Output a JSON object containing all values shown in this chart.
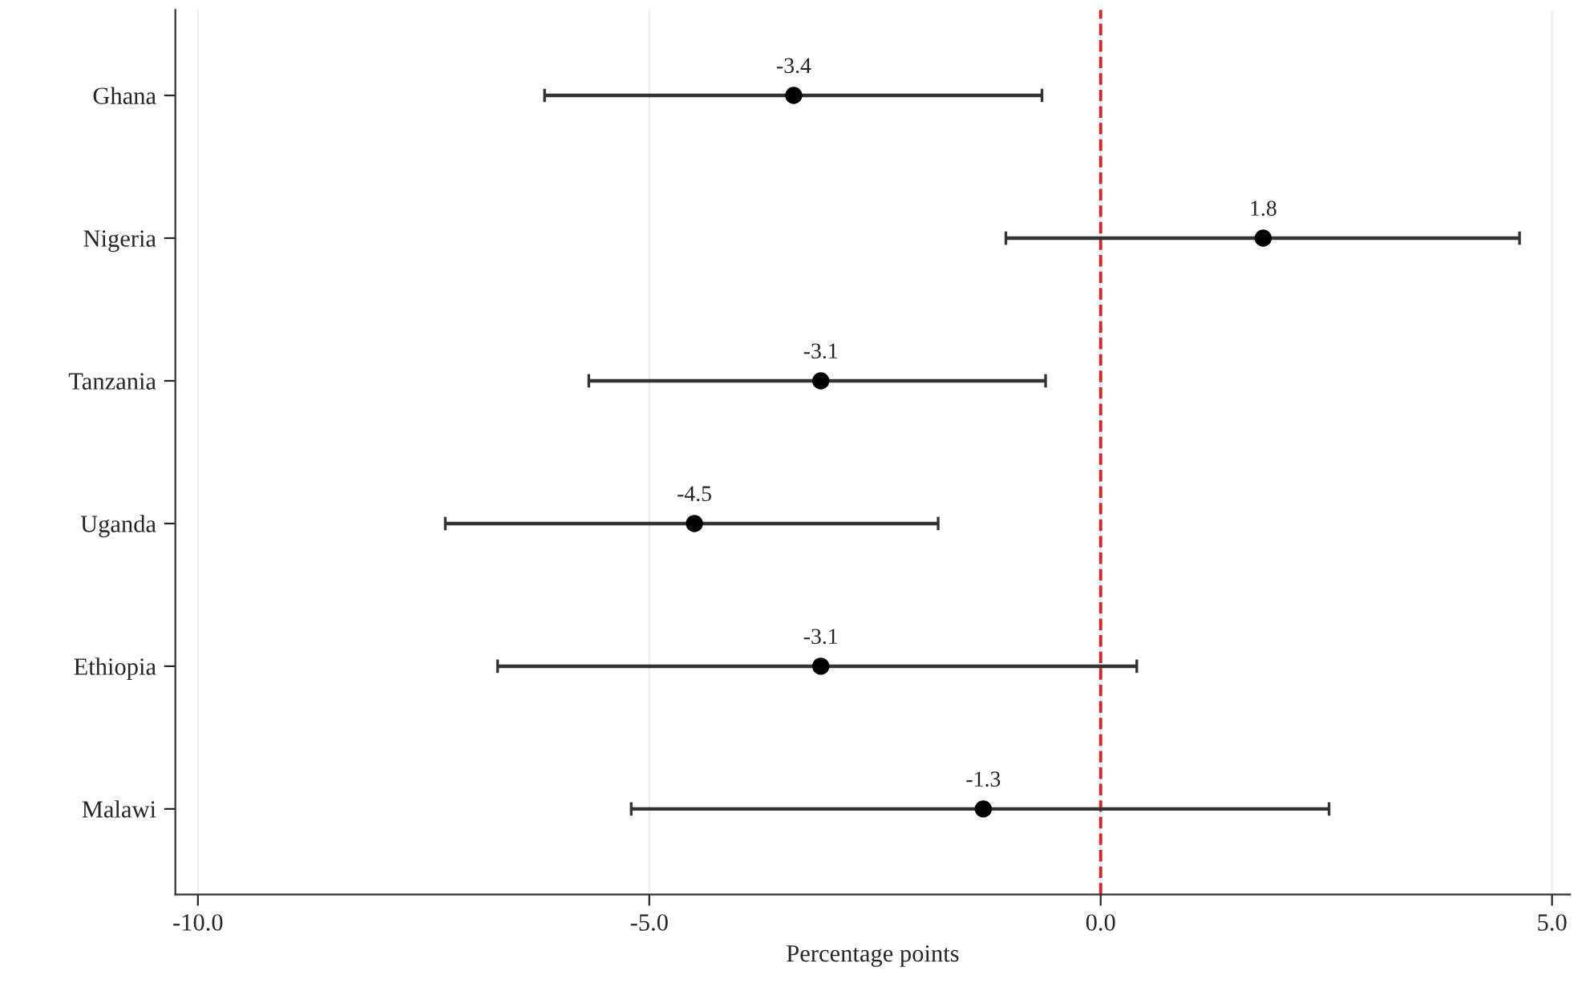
{
  "chart_data": {
    "type": "scatter",
    "orientation": "horizontal",
    "xlabel": "Percentage points",
    "categories": [
      "Ghana",
      "Nigeria",
      "Tanzania",
      "Uganda",
      "Ethiopia",
      "Malawi"
    ],
    "values": [
      -3.4,
      1.8,
      -3.1,
      -4.5,
      -3.1,
      -1.3
    ],
    "errors": [
      [
        -6.16,
        -0.65
      ],
      [
        -1.05,
        4.64
      ],
      [
        -5.67,
        -0.61
      ],
      [
        -7.26,
        -1.8
      ],
      [
        -6.68,
        0.4
      ],
      [
        -5.2,
        2.53
      ]
    ],
    "color": "#000000",
    "marker": "circle",
    "data_labels": true,
    "xlim": [
      -10.25,
      5.2
    ],
    "xticks": [
      {
        "value": -10,
        "label": "-10.0"
      },
      {
        "value": -5,
        "label": "-5.0"
      },
      {
        "value": 0,
        "label": "0.0"
      },
      {
        "value": 5,
        "label": "5.0"
      }
    ],
    "grid": "x",
    "ref_lines": [
      {
        "axis": "x",
        "value": 0,
        "color": "#d62728",
        "line_style": "dashed"
      }
    ]
  }
}
